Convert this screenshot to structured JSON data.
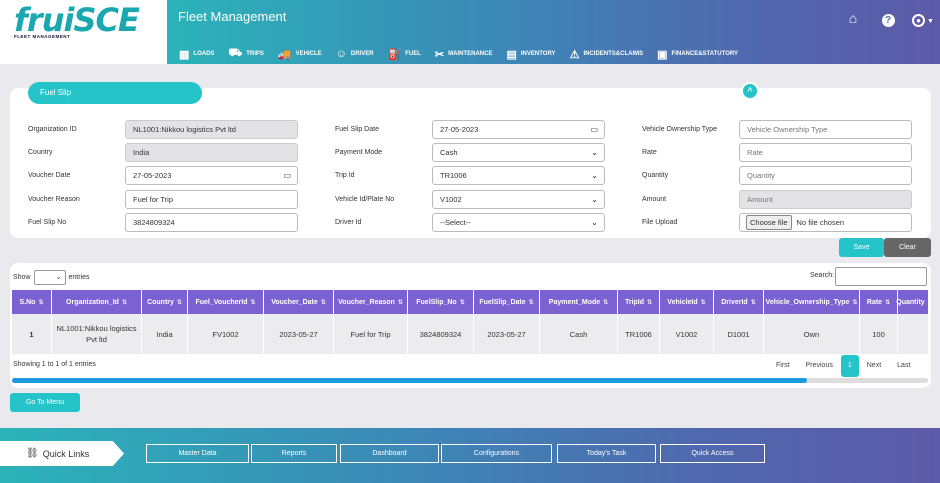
{
  "app": {
    "logo": "fruiSCE",
    "logo_sub": "FLEET MANAGEMENT",
    "title": "Fleet Management"
  },
  "header_icons": [
    {
      "name": "home-icon",
      "glyph": "⌂"
    },
    {
      "name": "help-icon",
      "glyph": "?"
    },
    {
      "name": "user-icon",
      "glyph": "👤"
    }
  ],
  "nav": [
    {
      "label": "LOADS",
      "icon": "▦"
    },
    {
      "label": "TRIPS",
      "icon": "⛟"
    },
    {
      "label": "VEHICLE",
      "icon": "🚚"
    },
    {
      "label": "DRIVER",
      "icon": "☺"
    },
    {
      "label": "FUEL",
      "icon": "⛽"
    },
    {
      "label": "MAINTENANCE",
      "icon": "✂"
    },
    {
      "label": "INVENTORY",
      "icon": "▤"
    },
    {
      "label": "INCIDENTS&CLAIMS",
      "icon": "⚠"
    },
    {
      "label": "FINANCE&STATUTORY",
      "icon": "▣"
    }
  ],
  "form": {
    "tab": "Fuel Slip",
    "col1": [
      {
        "label": "Organization ID",
        "value": "NL1001:Nikkou logistics Pvt ltd",
        "kind": "ro"
      },
      {
        "label": "Country",
        "value": "India",
        "kind": "ro"
      },
      {
        "label": "Voucher Date",
        "value": "27-05-2023",
        "kind": "date"
      },
      {
        "label": "Voucher Reason",
        "value": "Fuel for Trip",
        "kind": "text"
      },
      {
        "label": "Fuel Slip No",
        "value": "3824809324",
        "kind": "text"
      }
    ],
    "col2": [
      {
        "label": "Fuel Slip Date",
        "value": "27-05-2023",
        "kind": "date"
      },
      {
        "label": "Payment Mode",
        "value": "Cash",
        "kind": "select"
      },
      {
        "label": "Trip Id",
        "value": "TR1006",
        "kind": "select"
      },
      {
        "label": "Vehicle Id/Plate No",
        "value": "V1002",
        "kind": "select"
      },
      {
        "label": "Driver Id",
        "value": "--Select--",
        "kind": "select"
      }
    ],
    "col3": [
      {
        "label": "Vehicle Ownership Type",
        "value": "Vehicle Ownership Type",
        "kind": "ph"
      },
      {
        "label": "Rate",
        "value": "Rate",
        "kind": "ph"
      },
      {
        "label": "Quantity",
        "value": "Quantity",
        "kind": "ph"
      },
      {
        "label": "Amount",
        "value": "Amount",
        "kind": "roph"
      },
      {
        "label": "File Upload",
        "value": "No file chosen",
        "kind": "file",
        "button": "Choose file"
      }
    ],
    "save": "Save",
    "clear": "Clear"
  },
  "table": {
    "show_label": "Show",
    "entries_label": "entries",
    "search_label": "Search:",
    "columns": [
      "S.No",
      "Organization_Id",
      "Country",
      "Fuel_VoucherId",
      "Voucher_Date",
      "Voucher_Reason",
      "FuelSlip_No",
      "FuelSlip_Date",
      "Payment_Mode",
      "TripId",
      "VehicleId",
      "DriverId",
      "Vehicle_Ownership_Type",
      "Rate",
      "Quantity"
    ],
    "rows": [
      [
        "1",
        "NL1001:Nikkou logistics Pvt ltd",
        "India",
        "FV1002",
        "2023-05-27",
        "Fuel for Trip",
        "3824809324",
        "2023-05-27",
        "Cash",
        "TR1006",
        "V1002",
        "D1001",
        "Own",
        "100",
        ""
      ]
    ],
    "info": "Showing 1 to 1 of 1 entries",
    "pager": [
      "First",
      "Previous",
      "1",
      "Next",
      "Last"
    ]
  },
  "goto_menu": "Go To Menu",
  "footer": {
    "quick_links": "Quick Links",
    "buttons": [
      "Master Data",
      "Reports",
      "Dashboard",
      "Configurations",
      "Today's Task",
      "Quick Access"
    ]
  }
}
